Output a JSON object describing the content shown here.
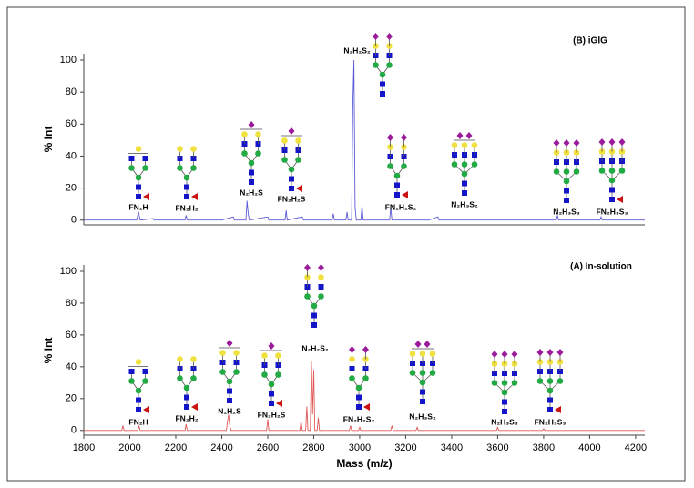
{
  "chart_data": [
    {
      "type": "line",
      "title": "(B) iGlG",
      "ylabel": "% Int",
      "color": "#5b5bd6",
      "xlim": [
        1800,
        4240
      ],
      "ylim": [
        -3,
        104
      ],
      "yticks": [
        0,
        20,
        40,
        60,
        80,
        100
      ],
      "x": [
        1800,
        2030,
        2038,
        2045,
        2100,
        2105,
        2110,
        2240,
        2245,
        2250,
        2400,
        2450,
        2455,
        2505,
        2510,
        2515,
        2520,
        2600,
        2605,
        2610,
        2675,
        2680,
        2685,
        2750,
        2755,
        2760,
        2880,
        2885,
        2890,
        2940,
        2945,
        2950,
        2965,
        2970,
        2975,
        2980,
        2985,
        3005,
        3010,
        3015,
        3130,
        3135,
        3140,
        3300,
        3340,
        3345,
        3855,
        3860,
        3865,
        4045,
        4050,
        4055,
        4240
      ],
      "values": [
        0,
        0,
        5,
        0,
        1,
        0,
        0,
        0,
        3,
        0,
        0,
        2,
        0,
        0,
        12,
        4,
        0,
        2,
        0,
        0,
        0,
        6,
        0,
        2,
        0,
        0,
        0,
        4,
        0,
        0,
        5,
        0,
        0,
        72,
        100,
        8,
        0,
        0,
        9,
        0,
        0,
        8,
        0,
        0,
        2,
        0,
        0,
        3,
        0,
        0,
        2,
        0,
        0
      ],
      "annotations": [
        "FN₂H",
        "FN₂H₂",
        "N₂H₂S",
        "FN₂H₂S",
        "N₂H₂S₂",
        "FN₂H₂S₂",
        "N₂H₃S₂",
        "N₂H₃S₃",
        "FN₂H₃S₃"
      ]
    },
    {
      "type": "line",
      "title": "(A) In-solution",
      "ylabel": "% Int",
      "xlabel": "Mass (m/z)",
      "color": "#e05858",
      "xlim": [
        1800,
        4240
      ],
      "ylim": [
        -3,
        104
      ],
      "yticks": [
        0,
        20,
        40,
        60,
        80,
        100
      ],
      "xticks": [
        1800,
        2000,
        2200,
        2400,
        2600,
        2800,
        3000,
        3200,
        3400,
        3600,
        3800,
        4000,
        4200
      ],
      "x": [
        1800,
        1965,
        1970,
        1975,
        2035,
        2040,
        2045,
        2240,
        2245,
        2250,
        2420,
        2425,
        2430,
        2435,
        2440,
        2595,
        2600,
        2605,
        2740,
        2745,
        2750,
        2765,
        2770,
        2775,
        2785,
        2790,
        2795,
        2800,
        2805,
        2815,
        2820,
        2825,
        2955,
        2960,
        2965,
        2995,
        3000,
        3005,
        3135,
        3140,
        3145,
        3245,
        3250,
        3255,
        3595,
        3600,
        3605,
        3795,
        3800,
        3805,
        4240
      ],
      "values": [
        0,
        0,
        3,
        0,
        0,
        3,
        0,
        0,
        4,
        0,
        0,
        6,
        10,
        3,
        0,
        0,
        7,
        0,
        0,
        6,
        0,
        0,
        15,
        0,
        0,
        44,
        10,
        38,
        0,
        0,
        8,
        0,
        0,
        3,
        0,
        0,
        2,
        0,
        0,
        3,
        0,
        0,
        2,
        0,
        0,
        2,
        0,
        0,
        1,
        0,
        0
      ],
      "annotations": [
        "FN₂H",
        "FN₂H₂",
        "N₂H₂S",
        "FN₂H₂S",
        "N₂H₂S₂",
        "FN₂H₂S₂",
        "N₂H₃S₂",
        "N₂H₃S₃",
        "FN₂H₃S₃"
      ]
    }
  ]
}
